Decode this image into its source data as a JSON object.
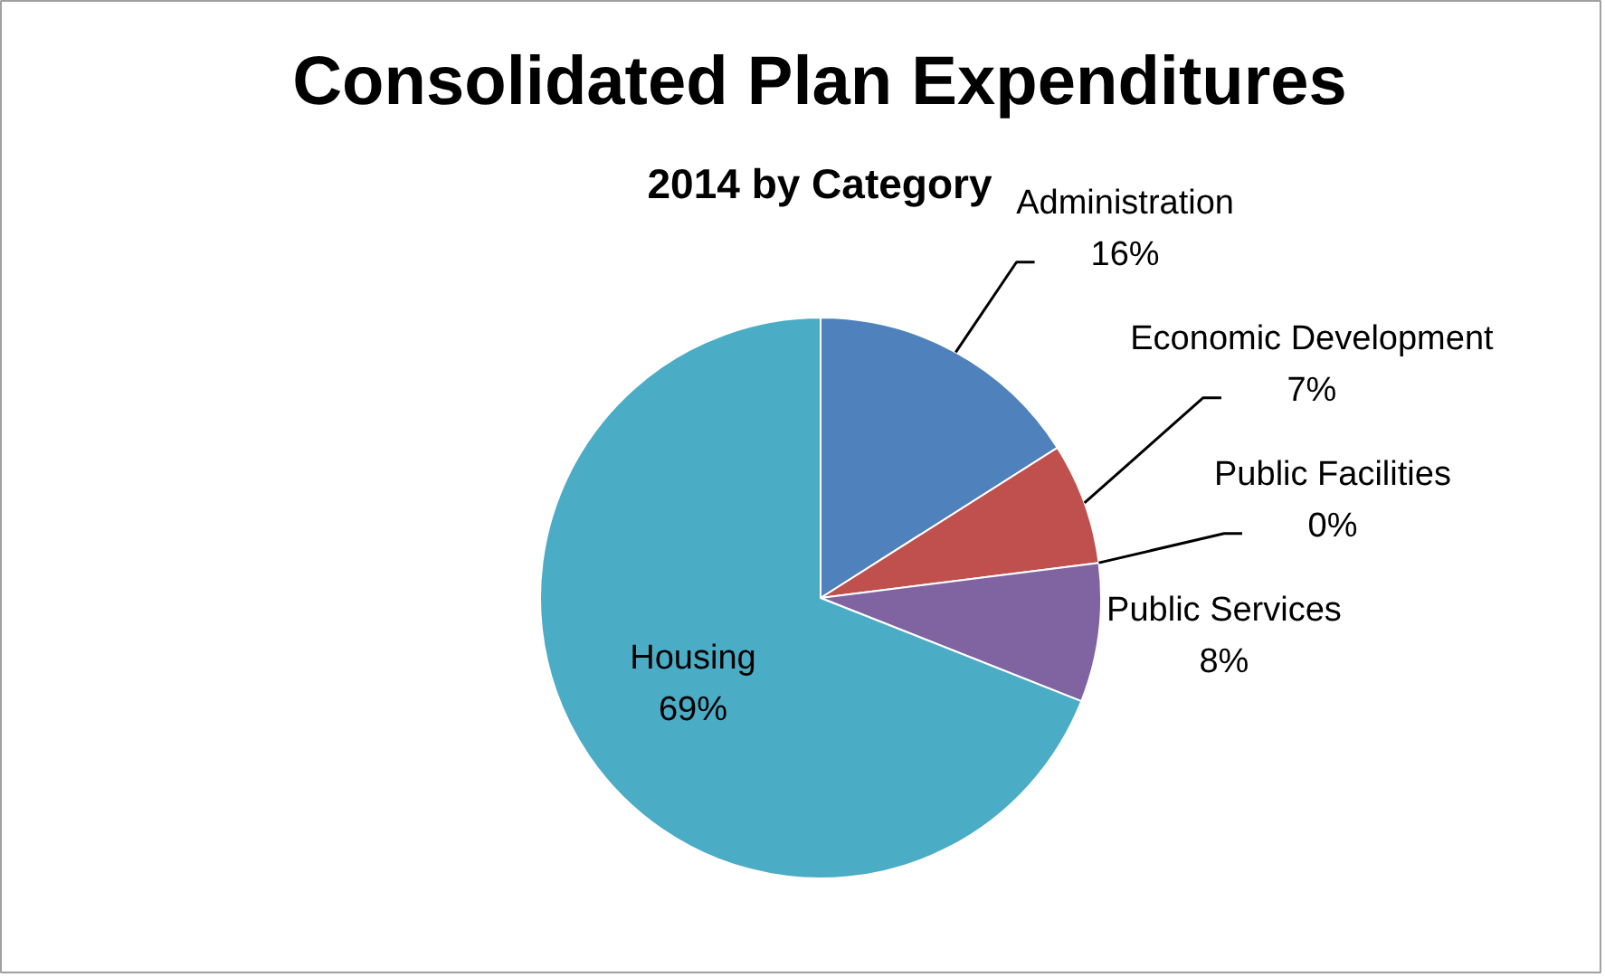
{
  "chart_data": {
    "type": "pie",
    "title": "Consolidated Plan Expenditures",
    "subtitle": "2014 by Category",
    "categories": [
      "Administration",
      "Economic Development",
      "Public Facilities",
      "Public Services",
      "Housing"
    ],
    "values": [
      16,
      7,
      0,
      8,
      69
    ],
    "colors": [
      "#4f81bd",
      "#c0504d",
      "#9bbb59",
      "#8064a2",
      "#4bacc6"
    ],
    "value_labels": [
      "16%",
      "7%",
      "0%",
      "8%",
      "69%"
    ]
  }
}
